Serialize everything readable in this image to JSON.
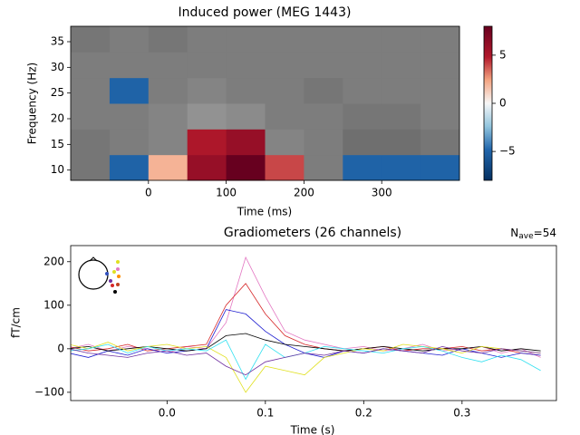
{
  "chart_data": [
    {
      "type": "heatmap",
      "title": "Induced power (MEG 1443)",
      "xlabel": "Time (ms)",
      "ylabel": "Frequency (Hz)",
      "xbins": [
        -100,
        -50,
        0,
        50,
        100,
        150,
        200,
        250,
        300,
        350,
        400
      ],
      "ybins": [
        8,
        13,
        18,
        23,
        28,
        33,
        38
      ],
      "values": [
        [
          -1,
          -5,
          2,
          6,
          8,
          4,
          0,
          -5,
          -5,
          -5
        ],
        [
          -1,
          0,
          1,
          5,
          6,
          1,
          0,
          -2,
          -2,
          -1
        ],
        [
          0,
          0,
          1,
          3,
          2,
          0,
          0,
          -1,
          -1,
          0
        ],
        [
          0,
          -5,
          0,
          1,
          0,
          0,
          -1,
          0,
          0,
          0
        ],
        [
          0,
          0,
          0,
          0,
          0,
          0,
          0,
          0,
          0,
          0
        ],
        [
          -1,
          0,
          -1,
          0,
          0,
          0,
          0,
          0,
          0,
          0
        ]
      ],
      "significant": [
        [
          false,
          true,
          true,
          true,
          true,
          true,
          false,
          true,
          true,
          true
        ],
        [
          false,
          false,
          false,
          true,
          true,
          false,
          false,
          false,
          false,
          false
        ],
        [
          false,
          false,
          false,
          false,
          false,
          false,
          false,
          false,
          false,
          false
        ],
        [
          false,
          true,
          false,
          false,
          false,
          false,
          false,
          false,
          false,
          false
        ],
        [
          false,
          false,
          false,
          false,
          false,
          false,
          false,
          false,
          false,
          false
        ],
        [
          false,
          false,
          false,
          false,
          false,
          false,
          false,
          false,
          false,
          false
        ]
      ],
      "xlim": [
        -100,
        400
      ],
      "ylim": [
        8,
        38
      ],
      "xticks": [
        0,
        100,
        200,
        300
      ],
      "yticks": [
        10,
        15,
        20,
        25,
        30,
        35
      ],
      "clim": [
        -8,
        8
      ],
      "cticks": [
        {
          "value": -5,
          "label": "−5"
        },
        0,
        5
      ],
      "colormap": "RdBu_r"
    },
    {
      "type": "line",
      "title": "Gradiometers (26 channels)",
      "xlabel": "Time (s)",
      "ylabel": "fT/cm",
      "annotation": {
        "symbol": "N",
        "subscript": "ave",
        "text": "=54"
      },
      "x": [
        -0.1,
        -0.08,
        -0.06,
        -0.04,
        -0.02,
        0,
        0.02,
        0.04,
        0.06,
        0.08,
        0.1,
        0.12,
        0.14,
        0.16,
        0.18,
        0.2,
        0.22,
        0.24,
        0.26,
        0.28,
        0.3,
        0.32,
        0.34,
        0.36,
        0.38
      ],
      "series": [
        {
          "color": "#e377c2",
          "values": [
            0,
            10,
            -5,
            5,
            0,
            -10,
            5,
            0,
            60,
            210,
            120,
            40,
            20,
            10,
            0,
            5,
            -5,
            0,
            10,
            -5,
            0,
            5,
            -10,
            0,
            -20
          ]
        },
        {
          "color": "#d62728",
          "values": [
            5,
            -5,
            0,
            10,
            -5,
            0,
            5,
            10,
            100,
            150,
            80,
            30,
            10,
            0,
            -5,
            0,
            5,
            -5,
            0,
            0,
            5,
            -5,
            0,
            -10,
            -15
          ]
        },
        {
          "color": "#1f1fd0",
          "values": [
            -10,
            -20,
            -5,
            -15,
            0,
            -10,
            -5,
            0,
            90,
            80,
            40,
            10,
            -10,
            -20,
            -5,
            -10,
            0,
            -5,
            -10,
            -15,
            0,
            -10,
            -20,
            -10,
            -15
          ]
        },
        {
          "color": "#000000",
          "values": [
            0,
            5,
            -5,
            0,
            5,
            0,
            -5,
            0,
            30,
            35,
            20,
            10,
            5,
            0,
            -5,
            0,
            5,
            0,
            -5,
            0,
            0,
            5,
            -5,
            0,
            -5
          ]
        },
        {
          "color": "#e0e020",
          "values": [
            10,
            0,
            15,
            -5,
            5,
            10,
            0,
            5,
            -20,
            -100,
            -40,
            -50,
            -60,
            -20,
            -10,
            0,
            -5,
            10,
            5,
            0,
            -10,
            5,
            0,
            -5,
            -10
          ]
        },
        {
          "color": "#30e0f0",
          "values": [
            -5,
            0,
            10,
            -10,
            5,
            -5,
            0,
            -5,
            20,
            -70,
            10,
            -20,
            -10,
            5,
            0,
            -5,
            -10,
            0,
            5,
            -5,
            -20,
            -30,
            -15,
            -25,
            -50
          ]
        },
        {
          "color": "#7030a0",
          "values": [
            0,
            -10,
            -15,
            -20,
            -10,
            -5,
            -15,
            -10,
            -40,
            -60,
            -30,
            -20,
            -10,
            -15,
            -5,
            -10,
            0,
            -5,
            -10,
            5,
            -5,
            -10,
            0,
            -5,
            -10
          ]
        }
      ],
      "xlim": [
        -0.098,
        0.396
      ],
      "ylim": [
        -119,
        237
      ],
      "xticks": [
        {
          "value": 0,
          "label": "0.0"
        },
        0.1,
        0.2,
        0.3
      ],
      "yticks": [
        {
          "value": -100,
          "label": "−100"
        },
        0,
        100,
        200
      ]
    }
  ]
}
